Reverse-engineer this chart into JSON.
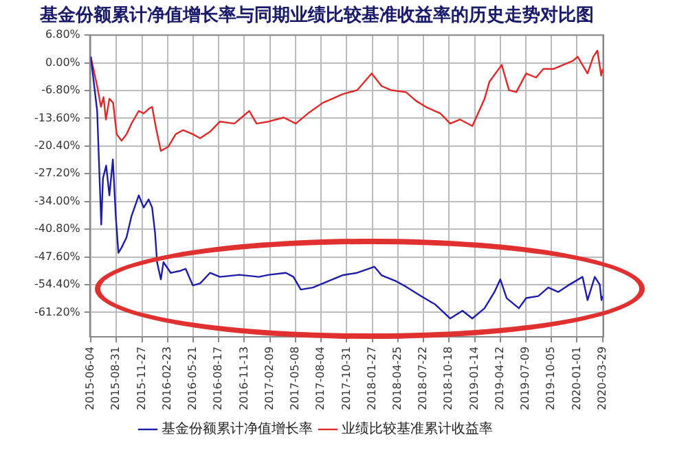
{
  "chart_data": {
    "type": "line",
    "title": "基金份额累计净值增长率与同期业绩比较基准收益率的历史走势对比图",
    "xlim": [
      "2015-06-01",
      "2020-04-01"
    ],
    "xticks": [
      "2015-06-04",
      "2015-08-31",
      "2015-11-27",
      "2016-02-23",
      "2016-05-21",
      "2016-08-17",
      "2016-11-13",
      "2017-02-09",
      "2017-05-08",
      "2017-08-04",
      "2017-10-31",
      "2018-01-27",
      "2018-04-25",
      "2018-07-22",
      "2018-10-18",
      "2019-01-14",
      "2019-04-12",
      "2019-07-09",
      "2019-10-05",
      "2020-01-01",
      "2020-03-29"
    ],
    "ylim": [
      -67.2,
      6.8
    ],
    "yticks": [
      {
        "value": 6.8,
        "label": "6.80%"
      },
      {
        "value": 0,
        "label": "0.00%"
      },
      {
        "value": -6.8,
        "label": "-6.80%"
      },
      {
        "value": -13.6,
        "label": "-13.60%"
      },
      {
        "value": -20.4,
        "label": "-20.40%"
      },
      {
        "value": -27.2,
        "label": "-27.20%"
      },
      {
        "value": -34,
        "label": "-34.00%"
      },
      {
        "value": -40.8,
        "label": "-40.80%"
      },
      {
        "value": -47.6,
        "label": "-47.60%"
      },
      {
        "value": -54.4,
        "label": "-54.40%"
      },
      {
        "value": -61.2,
        "label": "-61.20%"
      }
    ],
    "grid": true,
    "legend": "bottom",
    "marker": "none",
    "line_style": "solid",
    "series": [
      {
        "name": "基金份额累计净值增长率",
        "color": "#1c1ca8",
        "x": [
          "2015-06-04",
          "2015-06-26",
          "2015-07-10",
          "2015-07-16",
          "2015-07-27",
          "2015-08-07",
          "2015-08-19",
          "2015-08-29",
          "2015-09-07",
          "2015-09-18",
          "2015-10-05",
          "2015-10-22",
          "2015-11-16",
          "2015-12-03",
          "2015-12-20",
          "2016-01-01",
          "2016-01-11",
          "2016-01-18",
          "2016-01-31",
          "2016-02-09",
          "2016-03-05",
          "2016-04-08",
          "2016-04-25",
          "2016-05-20",
          "2016-06-14",
          "2016-07-18",
          "2016-08-21",
          "2016-10-27",
          "2017-01-02",
          "2017-02-05",
          "2017-04-05",
          "2017-05-01",
          "2017-05-26",
          "2017-07-07",
          "2017-08-10",
          "2017-10-16",
          "2017-12-06",
          "2018-02-03",
          "2018-02-28",
          "2018-04-20",
          "2018-05-23",
          "2018-07-13",
          "2018-09-01",
          "2018-10-22",
          "2018-12-03",
          "2019-01-06",
          "2019-02-17",
          "2019-03-23",
          "2019-04-12",
          "2019-05-04",
          "2019-06-15",
          "2019-07-10",
          "2019-08-21",
          "2019-09-24",
          "2019-10-28",
          "2019-12-01",
          "2020-01-20",
          "2020-02-06",
          "2020-03-02",
          "2020-03-19",
          "2020-03-25",
          "2020-03-29"
        ],
        "values": [
          1.5,
          -11.8,
          -39.7,
          -28.3,
          -25.2,
          -32.5,
          -23.7,
          -37.6,
          -46.6,
          -45.3,
          -42.8,
          -37.6,
          -32.5,
          -35.5,
          -33.5,
          -35.5,
          -41.7,
          -48.9,
          -53.1,
          -48.9,
          -51.5,
          -51.0,
          -50.5,
          -54.6,
          -54.1,
          -51.5,
          -52.5,
          -52.0,
          -52.5,
          -52.0,
          -51.5,
          -52.5,
          -55.6,
          -55.1,
          -54.1,
          -52.1,
          -51.5,
          -50.0,
          -52.1,
          -53.6,
          -54.9,
          -57.2,
          -59.3,
          -62.7,
          -60.8,
          -62.7,
          -60.2,
          -56.2,
          -53.1,
          -57.7,
          -60.2,
          -57.7,
          -57.2,
          -55.1,
          -56.2,
          -54.6,
          -52.5,
          -58.2,
          -52.5,
          -54.4,
          -58.2,
          -57.2
        ]
      },
      {
        "name": "业绩比较基准累计收益率",
        "color": "#e02828",
        "x": [
          "2015-06-04",
          "2015-06-26",
          "2015-07-09",
          "2015-07-18",
          "2015-07-26",
          "2015-08-07",
          "2015-08-20",
          "2015-09-01",
          "2015-09-18",
          "2015-10-05",
          "2015-10-22",
          "2015-11-16",
          "2015-12-03",
          "2015-12-20",
          "2016-01-01",
          "2016-01-14",
          "2016-01-31",
          "2016-02-25",
          "2016-03-22",
          "2016-04-16",
          "2016-05-20",
          "2016-06-14",
          "2016-07-18",
          "2016-08-21",
          "2016-10-10",
          "2016-11-30",
          "2016-12-25",
          "2017-02-05",
          "2017-03-28",
          "2017-05-09",
          "2017-06-20",
          "2017-08-10",
          "2017-09-12",
          "2017-10-16",
          "2017-12-06",
          "2018-01-25",
          "2018-02-28",
          "2018-04-02",
          "2018-05-23",
          "2018-06-26",
          "2018-07-30",
          "2018-09-18",
          "2018-10-22",
          "2018-11-25",
          "2019-01-06",
          "2019-02-17",
          "2019-03-06",
          "2019-04-17",
          "2019-05-12",
          "2019-06-06",
          "2019-07-10",
          "2019-08-13",
          "2019-09-07",
          "2019-10-11",
          "2019-11-14",
          "2019-12-18",
          "2020-01-03",
          "2020-02-06",
          "2020-02-26",
          "2020-03-11",
          "2020-03-24",
          "2020-03-29"
        ],
        "values": [
          1.5,
          -5.7,
          -10.8,
          -8.4,
          -13.9,
          -8.8,
          -9.8,
          -17.5,
          -19.1,
          -17.5,
          -14.9,
          -11.8,
          -12.4,
          -11.3,
          -10.8,
          -15.9,
          -21.6,
          -20.6,
          -17.5,
          -16.5,
          -17.5,
          -18.5,
          -16.9,
          -14.4,
          -14.9,
          -11.8,
          -14.9,
          -14.4,
          -13.4,
          -14.9,
          -12.4,
          -9.8,
          -8.8,
          -7.7,
          -6.7,
          -2.6,
          -5.7,
          -6.7,
          -7.2,
          -9.3,
          -10.8,
          -12.4,
          -14.9,
          -13.9,
          -15.5,
          -8.8,
          -4.6,
          -0.5,
          -6.7,
          -7.2,
          -2.6,
          -3.6,
          -1.5,
          -1.5,
          -0.5,
          0.5,
          1.5,
          -2.6,
          1.5,
          3.0,
          -3.1,
          -1.5
        ]
      }
    ]
  }
}
